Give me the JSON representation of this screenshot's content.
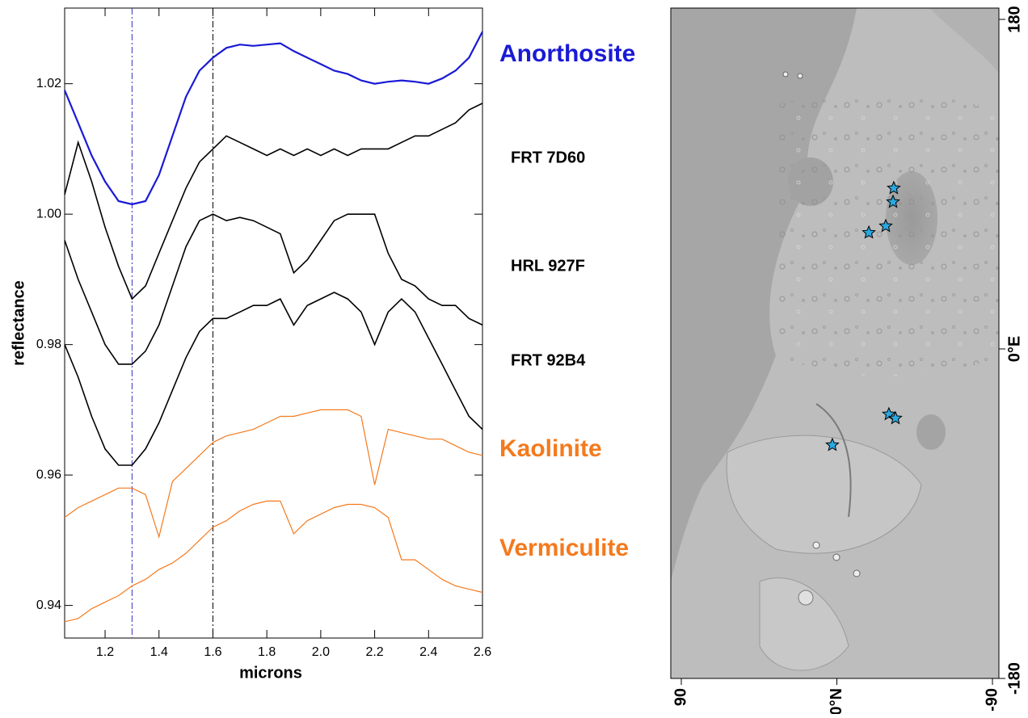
{
  "chart_data": [
    {
      "type": "line",
      "x_label": "microns",
      "y_label": "reflectance",
      "xlim": [
        1.05,
        2.6
      ],
      "ylim": [
        0.935,
        1.0316
      ],
      "xticks": [
        1.2,
        1.4,
        1.6,
        1.8,
        {
          "value": 2.0,
          "label": "2.0"
        },
        2.2,
        2.4,
        2.6
      ],
      "yticks": [
        0.94,
        0.96,
        0.98,
        {
          "value": 1.0,
          "label": "1.00"
        },
        1.02
      ],
      "x": [
        1.05,
        1.1,
        1.15,
        1.2,
        1.25,
        1.3,
        1.35,
        1.4,
        1.45,
        1.5,
        1.55,
        1.6,
        1.65,
        1.7,
        1.75,
        1.8,
        1.85,
        1.9,
        1.95,
        2.0,
        2.05,
        2.1,
        2.15,
        2.2,
        2.25,
        2.3,
        2.35,
        2.4,
        2.45,
        2.5,
        2.55,
        2.6
      ],
      "reference_lines": [
        {
          "x": 1.3,
          "color": "#3030c0"
        },
        {
          "x": 1.6,
          "color": "#000000"
        }
      ],
      "series": [
        {
          "name": "Anorthosite",
          "color": "#1a1ad6",
          "values": [
            1.019,
            1.014,
            1.009,
            1.005,
            1.002,
            1.0015,
            1.002,
            1.006,
            1.012,
            1.018,
            1.022,
            1.024,
            1.0255,
            1.026,
            1.0258,
            1.026,
            1.0262,
            1.025,
            1.024,
            1.023,
            1.022,
            1.0215,
            1.0205,
            1.02,
            1.0203,
            1.0205,
            1.0203,
            1.02,
            1.0208,
            1.022,
            1.024,
            1.028
          ]
        },
        {
          "name": "FRT 7D60",
          "color": "#000000",
          "values": [
            1.003,
            1.011,
            1.005,
            0.998,
            0.992,
            0.987,
            0.989,
            0.994,
            0.999,
            1.004,
            1.008,
            1.01,
            1.012,
            1.011,
            1.01,
            1.009,
            1.01,
            1.009,
            1.01,
            1.009,
            1.01,
            1.009,
            1.01,
            1.01,
            1.01,
            1.011,
            1.012,
            1.012,
            1.013,
            1.014,
            1.016,
            1.017
          ]
        },
        {
          "name": "HRL 927F",
          "color": "#000000",
          "values": [
            0.996,
            0.99,
            0.985,
            0.98,
            0.977,
            0.977,
            0.979,
            0.983,
            0.989,
            0.995,
            0.999,
            1.0,
            0.999,
            0.9995,
            0.999,
            0.998,
            0.997,
            0.991,
            0.993,
            0.996,
            0.999,
            1.0,
            1.0,
            1.0,
            0.994,
            0.99,
            0.989,
            0.987,
            0.986,
            0.986,
            0.984,
            0.983
          ]
        },
        {
          "name": "FRT 92B4",
          "color": "#000000",
          "values": [
            0.98,
            0.975,
            0.969,
            0.964,
            0.9615,
            0.9615,
            0.964,
            0.968,
            0.973,
            0.978,
            0.982,
            0.984,
            0.984,
            0.985,
            0.986,
            0.986,
            0.987,
            0.983,
            0.986,
            0.987,
            0.988,
            0.987,
            0.985,
            0.98,
            0.985,
            0.987,
            0.985,
            0.981,
            0.977,
            0.973,
            0.969,
            0.967
          ]
        },
        {
          "name": "Kaolinite",
          "color": "#f47a1e",
          "values": [
            0.9535,
            0.955,
            0.956,
            0.957,
            0.958,
            0.958,
            0.957,
            0.9505,
            0.959,
            0.961,
            0.963,
            0.965,
            0.966,
            0.9665,
            0.967,
            0.968,
            0.969,
            0.969,
            0.9695,
            0.97,
            0.97,
            0.97,
            0.969,
            0.9585,
            0.967,
            0.9665,
            0.966,
            0.9655,
            0.9655,
            0.9645,
            0.9635,
            0.963
          ]
        },
        {
          "name": "Vermiculite",
          "color": "#f47a1e",
          "values": [
            0.9375,
            0.938,
            0.9395,
            0.9405,
            0.9415,
            0.943,
            0.944,
            0.9455,
            0.9465,
            0.948,
            0.95,
            0.952,
            0.953,
            0.9545,
            0.9555,
            0.956,
            0.956,
            0.951,
            0.953,
            0.954,
            0.955,
            0.9555,
            0.9555,
            0.955,
            0.9535,
            0.947,
            0.947,
            0.9455,
            0.944,
            0.943,
            0.9425,
            0.942
          ]
        }
      ]
    },
    {
      "type": "map",
      "marker_color": "#2aa8e0",
      "lat_ticks": [
        90,
        {
          "value": 0,
          "label": "0°N"
        },
        -90
      ],
      "lon_ticks": [
        180,
        {
          "value": 0,
          "label": "0°E"
        },
        -180
      ],
      "sites": [
        {
          "lat": -32.9,
          "lon": 87.8
        },
        {
          "lat": -32.5,
          "lon": 80.3
        },
        {
          "lat": -28.3,
          "lon": 67.1
        },
        {
          "lat": -18.5,
          "lon": 63.5
        },
        {
          "lat": -30.1,
          "lon": -35.7
        },
        {
          "lat": -33.9,
          "lon": -37.9
        },
        {
          "lat": 2.6,
          "lon": -52.5
        }
      ]
    }
  ]
}
